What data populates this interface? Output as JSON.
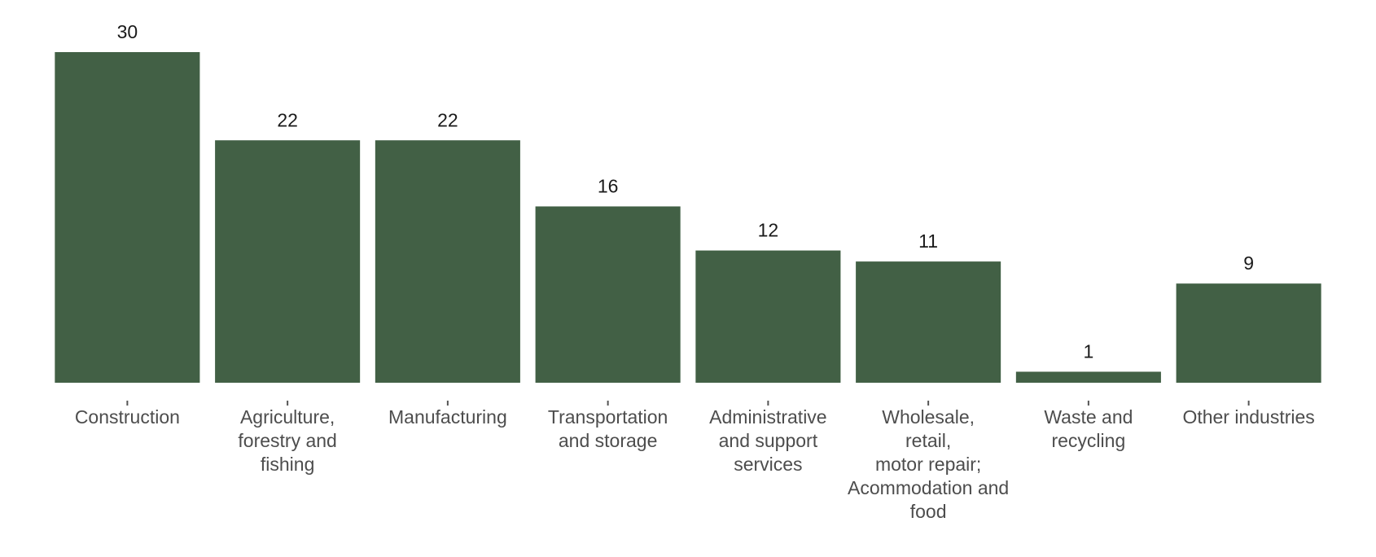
{
  "chart_data": {
    "type": "bar",
    "title": "",
    "xlabel": "",
    "ylabel": "",
    "ylim": [
      0,
      30
    ],
    "grid": false,
    "legend": "none",
    "bar_color": "#426045",
    "categories": [
      "Construction",
      "Agriculture, forestry and fishing",
      "Manufacturing",
      "Transportation and storage",
      "Administrative and support services",
      "Wholesale, retail, motor repair; Acommodation and food",
      "Waste and recycling",
      "Other industries"
    ],
    "category_label_lines": [
      [
        "Construction"
      ],
      [
        "Agriculture,",
        "forestry and",
        "fishing"
      ],
      [
        "Manufacturing"
      ],
      [
        "Transportation",
        "and storage"
      ],
      [
        "Administrative",
        "and support",
        "services"
      ],
      [
        "Wholesale,",
        "retail,",
        "motor repair;",
        "Acommodation and",
        "food"
      ],
      [
        "Waste and",
        "recycling"
      ],
      [
        "Other industries"
      ]
    ],
    "values": [
      30,
      22,
      22,
      16,
      12,
      11,
      1,
      9
    ],
    "data_labels": [
      "30",
      "22",
      "22",
      "16",
      "12",
      "11",
      "1",
      "9"
    ]
  }
}
